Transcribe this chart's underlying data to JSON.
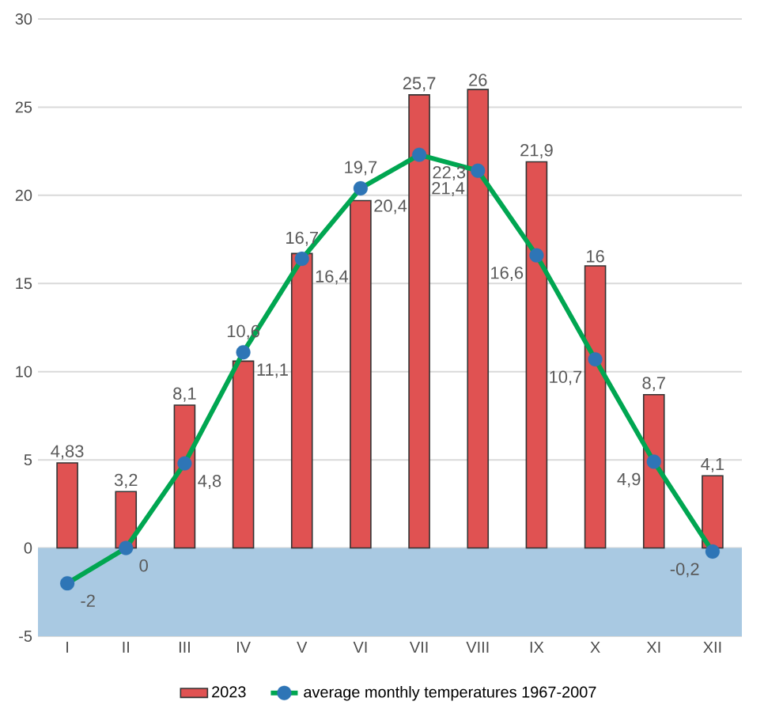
{
  "chart_data": {
    "type": "bar",
    "categories": [
      "I",
      "II",
      "III",
      "IV",
      "V",
      "VI",
      "VII",
      "VIII",
      "IX",
      "X",
      "XI",
      "XII"
    ],
    "series": [
      {
        "name": "2023",
        "color": "#e05252",
        "values": [
          4.83,
          3.2,
          8.1,
          10.6,
          16.7,
          19.7,
          25.7,
          26,
          21.9,
          16,
          8.7,
          4.1
        ],
        "value_labels": [
          "4,83",
          "3,2",
          "8,1",
          "10,6",
          "16,7",
          "19,7",
          "25,7",
          "26",
          "21,9",
          "16",
          "8,7",
          "4,1"
        ]
      },
      {
        "name": "average monthly temperatures 1967-2007",
        "type": "line",
        "color": "#00a651",
        "values": [
          -2,
          0,
          4.8,
          11.1,
          16.4,
          20.4,
          22.3,
          21.4,
          16.6,
          10.7,
          4.9,
          -0.2
        ],
        "value_labels": [
          "-2",
          "0",
          "4,8",
          "11,1",
          "16,4",
          "20,4",
          "22,3",
          "21,4",
          "16,6",
          "10,7",
          "4,9",
          "-0,2"
        ]
      }
    ],
    "ylim": [
      -5,
      30
    ],
    "yticks": [
      -5,
      0,
      5,
      10,
      15,
      20,
      25,
      30
    ],
    "grid": "y",
    "legend": "bottom",
    "marker": "circle",
    "bands": [
      {
        "axis": "y",
        "from": -5,
        "to": 0,
        "color": "#a9c9e2"
      }
    ]
  }
}
